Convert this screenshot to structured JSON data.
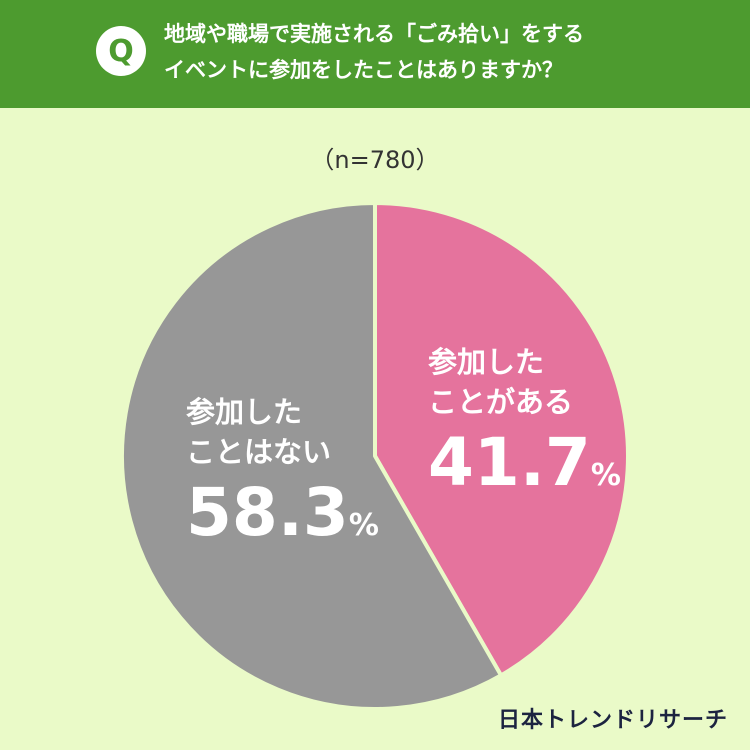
{
  "header": {
    "badge": "Q",
    "question_line1": "地域や職場で実施される「ごみ拾い」をする",
    "question_line2": "イベントに参加をしたことはありますか？"
  },
  "sample_size": "（n=780）",
  "chart_data": {
    "type": "pie",
    "title": "地域や職場で実施される「ごみ拾い」をするイベントに参加をしたことはありますか？",
    "n": 780,
    "slices": [
      {
        "label_line1": "参加した",
        "label_line2": "ことがある",
        "value": 41.7,
        "value_text": "41.7",
        "unit": "%",
        "color": "#e5739d"
      },
      {
        "label_line1": "参加した",
        "label_line2": "ことはない",
        "value": 58.3,
        "value_text": "58.3",
        "unit": "%",
        "color": "#979797"
      }
    ]
  },
  "credit": "日本トレンドリサーチ",
  "colors": {
    "background": "#eafac8",
    "header": "#4d9b2f",
    "separator": "#eafac8"
  }
}
